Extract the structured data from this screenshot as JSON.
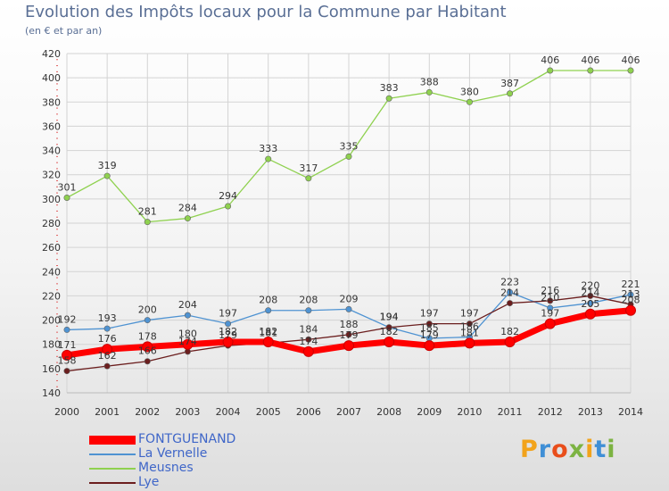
{
  "page": {
    "title": "Evolution des Impôts locaux pour la Commune par Habitant",
    "subtitle": "(en € et par an)"
  },
  "brand": {
    "text": "Proxiti",
    "letters": [
      {
        "ch": "P",
        "color": "#f2a31b"
      },
      {
        "ch": "r",
        "color": "#3f8fd6"
      },
      {
        "ch": "o",
        "color": "#e94e1b"
      },
      {
        "ch": "x",
        "color": "#7cb342"
      },
      {
        "ch": "i",
        "color": "#f2a31b"
      },
      {
        "ch": "t",
        "color": "#3f8fd6"
      },
      {
        "ch": "i",
        "color": "#7cb342"
      }
    ]
  },
  "chart_data": {
    "type": "line",
    "title": "Evolution des Impôts locaux pour la Commune par Habitant",
    "subtitle": "(en € et par an)",
    "categories": [
      "2000",
      "2001",
      "2002",
      "2003",
      "2004",
      "2005",
      "2006",
      "2007",
      "2008",
      "2009",
      "2010",
      "2011",
      "2012",
      "2013",
      "2014"
    ],
    "yticks": [
      140,
      160,
      180,
      200,
      220,
      240,
      260,
      280,
      300,
      320,
      340,
      360,
      380,
      400,
      420
    ],
    "ylim": [
      140,
      420
    ],
    "grid": true,
    "legend_position": "bottom-left",
    "series": [
      {
        "name": "FONTGUENAND",
        "color": "#ff0000",
        "values": [
          171,
          176,
          178,
          180,
          182,
          182,
          174,
          179,
          182,
          179,
          181,
          182,
          197,
          205,
          208
        ],
        "labels": [
          "171",
          "176",
          "178",
          "180",
          "182",
          "182",
          "174",
          "179",
          "182",
          "179",
          "181",
          "182",
          "197",
          "205",
          "208"
        ]
      },
      {
        "name": "La Vernelle",
        "color": "#4f93d2",
        "values": [
          192,
          193,
          200,
          204,
          197,
          208,
          208,
          209,
          194,
          185,
          186,
          223,
          210,
          214,
          221
        ],
        "labels": [
          "192",
          "193",
          "200",
          "204",
          "197",
          "208",
          "208",
          "209",
          "194",
          "185",
          "186",
          "223",
          "210",
          "214",
          "221"
        ]
      },
      {
        "name": "Meusnes",
        "color": "#8fd14f",
        "values": [
          301,
          319,
          281,
          284,
          294,
          333,
          317,
          335,
          383,
          388,
          380,
          387,
          406,
          406,
          406
        ],
        "labels": [
          "301",
          "319",
          "281",
          "284",
          "294",
          "333",
          "317",
          "335",
          "383",
          "388",
          "380",
          "387",
          "406",
          "406",
          "406"
        ]
      },
      {
        "name": "Lye",
        "color": "#6b1e1e",
        "values": [
          158,
          162,
          166,
          174,
          179,
          181,
          184,
          188,
          194,
          197,
          197,
          214,
          216,
          220,
          213
        ],
        "labels": [
          "158",
          "162",
          "166",
          "174",
          "179",
          "181",
          "184",
          "188",
          "194",
          "197",
          "197",
          "214",
          "216",
          "220",
          "213"
        ]
      }
    ]
  }
}
